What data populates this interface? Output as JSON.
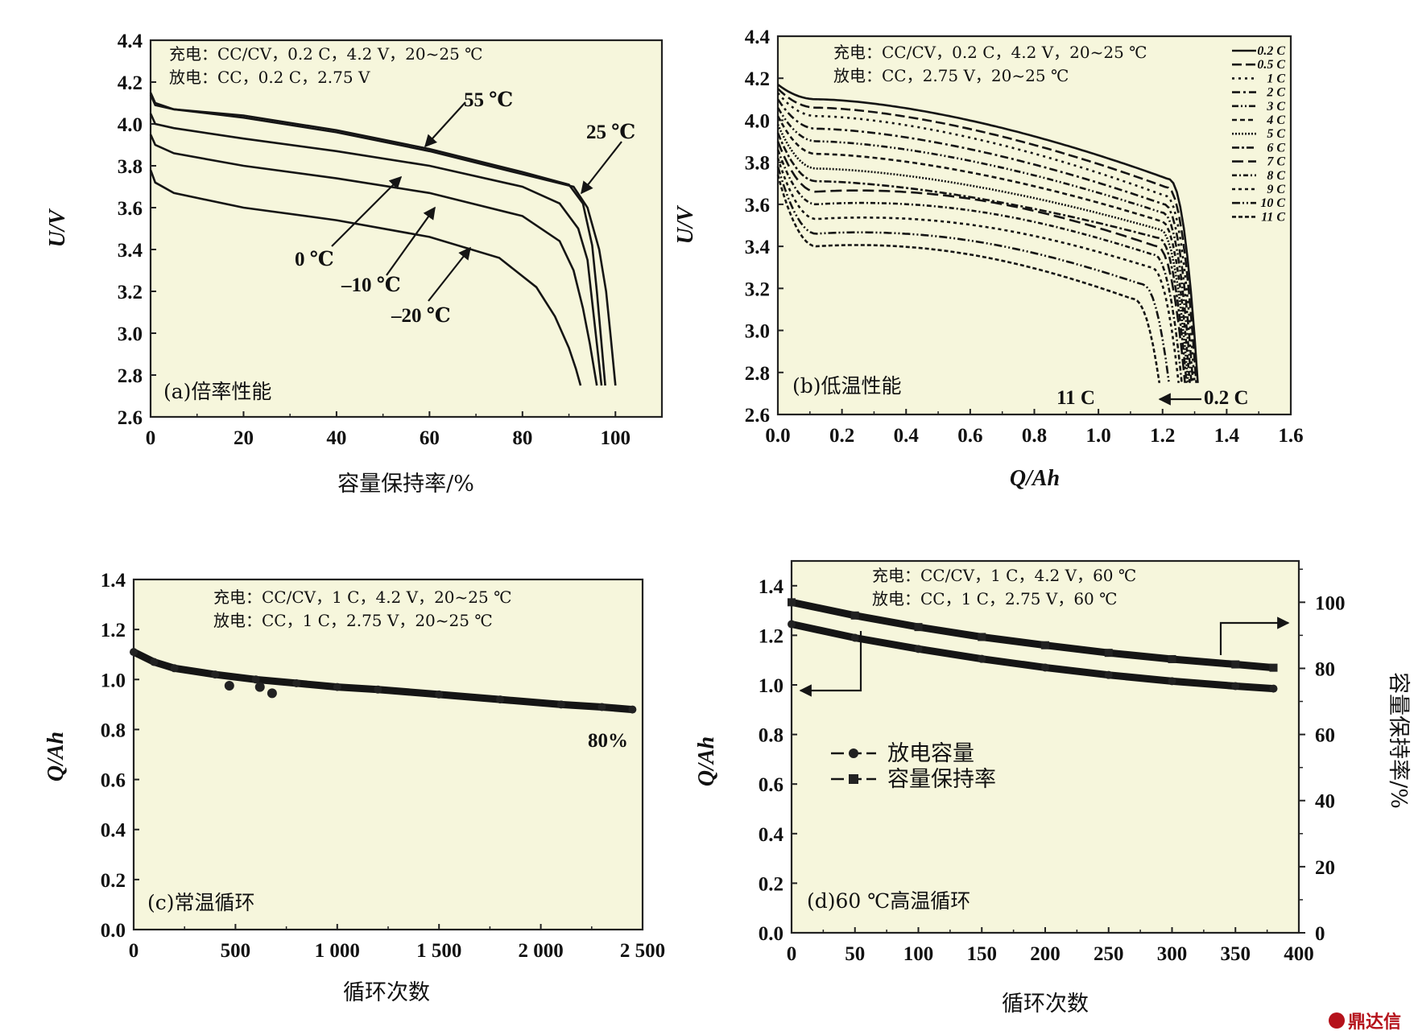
{
  "chart_data": [
    {
      "id": "a",
      "type": "line",
      "panel_label": "(a)倍率性能",
      "xlabel": "容量保持率/%",
      "ylabel": "U/V",
      "xlim": [
        0,
        110
      ],
      "ylim": [
        2.6,
        4.4
      ],
      "xticks": [
        "0",
        "20",
        "40",
        "60",
        "80",
        "100"
      ],
      "yticks": [
        "2.6",
        "2.8",
        "3.0",
        "3.2",
        "3.4",
        "3.6",
        "3.8",
        "4.0",
        "4.2",
        "4.4"
      ],
      "notes": [
        "充电：CC/CV，0.2 C，4.2 V，20~25 ℃",
        "放电：CC，0.2 C，2.75 V"
      ],
      "series": [
        {
          "name": "55 ℃",
          "x": [
            0,
            1,
            5,
            20,
            40,
            60,
            80,
            90,
            93,
            95,
            96,
            97,
            97.8
          ],
          "y": [
            4.14,
            4.09,
            4.07,
            4.04,
            3.97,
            3.88,
            3.77,
            3.71,
            3.62,
            3.42,
            3.2,
            2.95,
            2.75
          ]
        },
        {
          "name": "25 ℃",
          "x": [
            0,
            1,
            5,
            20,
            40,
            60,
            80,
            91,
            94,
            96.5,
            98,
            99,
            100
          ],
          "y": [
            4.15,
            4.1,
            4.07,
            4.03,
            3.96,
            3.87,
            3.76,
            3.7,
            3.6,
            3.4,
            3.2,
            2.98,
            2.75
          ]
        },
        {
          "name": "0 ℃",
          "x": [
            0,
            1,
            5,
            20,
            40,
            60,
            80,
            88,
            92,
            94,
            95,
            96,
            97
          ],
          "y": [
            4.05,
            4.0,
            3.98,
            3.93,
            3.87,
            3.8,
            3.7,
            3.62,
            3.5,
            3.35,
            3.15,
            2.95,
            2.75
          ]
        },
        {
          "name": "−10 ℃",
          "x": [
            0,
            1,
            5,
            20,
            40,
            60,
            80,
            88,
            91,
            93,
            94.5,
            96
          ],
          "y": [
            3.95,
            3.9,
            3.86,
            3.8,
            3.74,
            3.67,
            3.56,
            3.44,
            3.3,
            3.12,
            2.95,
            2.75
          ]
        },
        {
          "name": "−20 ℃",
          "x": [
            0,
            1,
            5,
            20,
            40,
            60,
            75,
            83,
            87,
            90,
            91.5,
            92.5
          ],
          "y": [
            3.78,
            3.72,
            3.67,
            3.6,
            3.54,
            3.46,
            3.36,
            3.22,
            3.08,
            2.93,
            2.83,
            2.75
          ]
        }
      ],
      "annotations": [
        "55 ℃",
        "25 ℃",
        "0 ℃",
        "–10 ℃",
        "–20 ℃"
      ]
    },
    {
      "id": "b",
      "type": "line",
      "panel_label": "(b)低温性能",
      "xlabel": "Q/Ah",
      "ylabel": "U/V",
      "xlim": [
        0,
        1.6
      ],
      "ylim": [
        2.6,
        4.4
      ],
      "xticks": [
        "0.0",
        "0.2",
        "0.4",
        "0.6",
        "0.8",
        "1.0",
        "1.2",
        "1.4",
        "1.6"
      ],
      "yticks": [
        "2.6",
        "2.8",
        "3.0",
        "3.2",
        "3.4",
        "3.6",
        "3.8",
        "4.0",
        "4.2",
        "4.4"
      ],
      "notes": [
        "充电：CC/CV，0.2 C，4.2 V，20~25 ℃",
        "放电：CC，2.75 V，20~25 ℃"
      ],
      "legend": [
        "0.2 C",
        "0.5 C",
        "1 C",
        "2 C",
        "3 C",
        "4 C",
        "5 C",
        "6 C",
        "7 C",
        "8 C",
        "9 C",
        "10 C",
        "11 C"
      ],
      "series": [
        {
          "name": "0.2 C",
          "v0": 4.17,
          "vmin": 4.1,
          "vend": 3.72,
          "qend": 1.31
        },
        {
          "name": "0.5 C",
          "v0": 4.15,
          "vmin": 4.06,
          "vend": 3.68,
          "qend": 1.305
        },
        {
          "name": "1 C",
          "v0": 4.13,
          "vmin": 4.02,
          "vend": 3.64,
          "qend": 1.3
        },
        {
          "name": "2 C",
          "v0": 4.1,
          "vmin": 3.96,
          "vend": 3.6,
          "qend": 1.295
        },
        {
          "name": "3 C",
          "v0": 4.06,
          "vmin": 3.9,
          "vend": 3.56,
          "qend": 1.29
        },
        {
          "name": "4 C",
          "v0": 4.02,
          "vmin": 3.84,
          "vend": 3.52,
          "qend": 1.285
        },
        {
          "name": "5 C",
          "v0": 3.98,
          "vmin": 3.77,
          "vend": 3.48,
          "qend": 1.28
        },
        {
          "name": "6 C",
          "v0": 3.94,
          "vmin": 3.71,
          "vend": 3.44,
          "qend": 1.275
        },
        {
          "name": "7 C",
          "v0": 3.9,
          "vmin": 3.66,
          "vend": 3.4,
          "qend": 1.27
        },
        {
          "name": "8 C",
          "v0": 3.86,
          "vmin": 3.6,
          "vend": 3.36,
          "qend": 1.26
        },
        {
          "name": "9 C",
          "v0": 3.82,
          "vmin": 3.53,
          "vend": 3.3,
          "qend": 1.25
        },
        {
          "name": "10 C",
          "v0": 3.78,
          "vmin": 3.46,
          "vend": 3.22,
          "qend": 1.22
        },
        {
          "name": "11 C",
          "v0": 3.74,
          "vmin": 3.4,
          "vend": 3.15,
          "qend": 1.19
        }
      ],
      "annotations": [
        "11 C",
        "0.2 C"
      ]
    },
    {
      "id": "c",
      "type": "scatter",
      "panel_label": "(c)常温循环",
      "xlabel": "循环次数",
      "ylabel": "Q/Ah",
      "xlim": [
        0,
        2500
      ],
      "ylim": [
        0,
        1.4
      ],
      "xticks": [
        "0",
        "500",
        "1 000",
        "1 500",
        "2 000",
        "2 500"
      ],
      "yticks": [
        "0.0",
        "0.2",
        "0.4",
        "0.6",
        "0.8",
        "1.0",
        "1.2",
        "1.4"
      ],
      "notes": [
        "充电：CC/CV，1 C，4.2 V，20~25 ℃",
        "放电：CC，1 C，2.75 V，20~25 ℃"
      ],
      "series": [
        {
          "name": "",
          "x": [
            0,
            100,
            200,
            400,
            600,
            800,
            1000,
            1200,
            1500,
            1800,
            2100,
            2300,
            2450
          ],
          "y": [
            1.11,
            1.07,
            1.045,
            1.02,
            1.0,
            0.985,
            0.97,
            0.96,
            0.94,
            0.92,
            0.9,
            0.89,
            0.88
          ]
        }
      ],
      "outliers": {
        "x": [
          470,
          620,
          680
        ],
        "y": [
          0.975,
          0.97,
          0.945
        ]
      },
      "annotations": [
        "80%"
      ]
    },
    {
      "id": "d",
      "type": "scatter",
      "panel_label": "(d)60 ℃高温循环",
      "xlabel": "循环次数",
      "ylabel": "Q/Ah",
      "y2label": "容量保持率/%",
      "xlim": [
        0,
        400
      ],
      "ylim": [
        0,
        1.5
      ],
      "y2lim": [
        0,
        112.5
      ],
      "xticks": [
        "0",
        "50",
        "100",
        "150",
        "200",
        "250",
        "300",
        "350",
        "400"
      ],
      "yticks": [
        "0.0",
        "0.2",
        "0.4",
        "0.6",
        "0.8",
        "1.0",
        "1.2",
        "1.4"
      ],
      "y2ticks": [
        "0",
        "20",
        "40",
        "60",
        "80",
        "100"
      ],
      "notes": [
        "充电：CC/CV，1 C，4.2 V，60 ℃",
        "放电：CC，1 C，2.75 V，60 ℃"
      ],
      "series": [
        {
          "name": "放电容量",
          "axis": "left",
          "x": [
            0,
            50,
            100,
            150,
            200,
            250,
            300,
            350,
            380
          ],
          "y": [
            1.245,
            1.19,
            1.145,
            1.105,
            1.07,
            1.04,
            1.015,
            0.995,
            0.985
          ]
        },
        {
          "name": "容量保持率",
          "axis": "right",
          "x": [
            0,
            50,
            100,
            150,
            200,
            250,
            300,
            350,
            380
          ],
          "y": [
            100,
            96,
            92.5,
            89.5,
            87,
            84.7,
            82.8,
            81.2,
            80.2
          ]
        }
      ]
    }
  ],
  "watermark": "鼎达信"
}
